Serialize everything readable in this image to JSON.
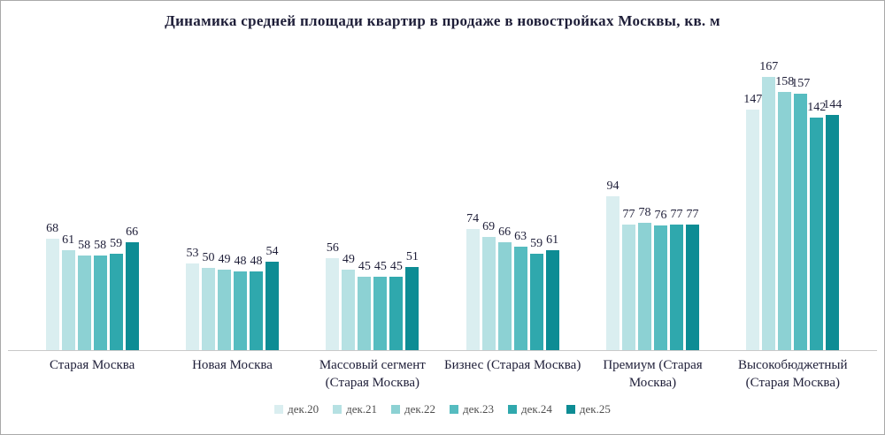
{
  "title": "Динамика средней площади квартир в продаже в новостройках Москвы, кв. м",
  "chart_data": {
    "type": "bar",
    "title": "Динамика средней площади квартир в продаже в новостройках Москвы, кв. м",
    "categories": [
      "Старая Москва",
      "Новая Москва",
      "Массовый сегмент (Старая Москва)",
      "Бизнес (Старая Москва)",
      "Премиум (Старая Москва)",
      "Высокобюджетный (Старая Москва)"
    ],
    "series": [
      {
        "name": "дек.20",
        "color": "#daeef0",
        "values": [
          68,
          53,
          56,
          74,
          94,
          147
        ]
      },
      {
        "name": "дек.21",
        "color": "#b6e1e3",
        "values": [
          61,
          50,
          49,
          69,
          77,
          167
        ]
      },
      {
        "name": "дек.22",
        "color": "#8cd1d3",
        "values": [
          58,
          49,
          45,
          66,
          78,
          158
        ]
      },
      {
        "name": "дек.23",
        "color": "#56bcc0",
        "values": [
          58,
          48,
          45,
          63,
          76,
          157
        ]
      },
      {
        "name": "дек.24",
        "color": "#2fa8ad",
        "values": [
          59,
          48,
          45,
          59,
          77,
          142
        ]
      },
      {
        "name": "дек.25",
        "color": "#0d8c94",
        "values": [
          66,
          54,
          51,
          61,
          77,
          144
        ]
      }
    ],
    "xlabel": "",
    "ylabel": "",
    "ylim": [
      0,
      180
    ],
    "grid": false,
    "data_labels": true,
    "legend_position": "bottom"
  }
}
